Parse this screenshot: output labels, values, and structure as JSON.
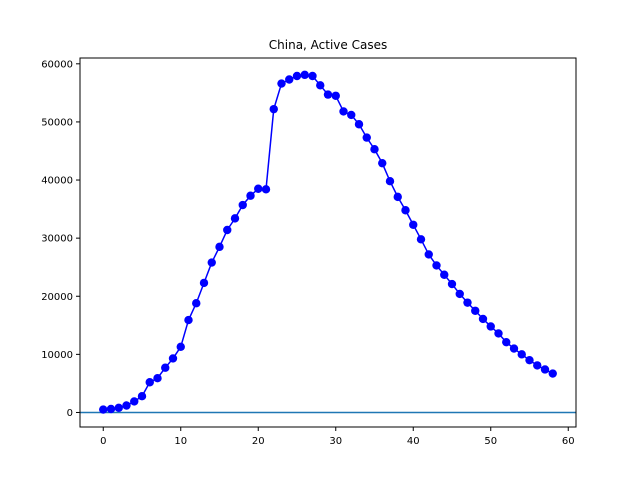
{
  "chart_data": {
    "type": "line",
    "title": "China, Active Cases",
    "xlabel": "",
    "ylabel": "",
    "xlim": [
      -3,
      61
    ],
    "ylim": [
      -2500,
      61000
    ],
    "xticks": [
      0,
      10,
      20,
      30,
      40,
      50,
      60
    ],
    "yticks": [
      0,
      10000,
      20000,
      30000,
      40000,
      50000,
      60000
    ],
    "grid": false,
    "series": [
      {
        "color": "#0000ff",
        "marker": "circle",
        "x": [
          0,
          1,
          2,
          3,
          4,
          5,
          6,
          7,
          8,
          9,
          10,
          11,
          12,
          13,
          14,
          15,
          16,
          17,
          18,
          19,
          20,
          21,
          22,
          23,
          24,
          25,
          26,
          27,
          28,
          29,
          30,
          31,
          32,
          33,
          34,
          35,
          36,
          37,
          38,
          39,
          40,
          41,
          42,
          43,
          44,
          45,
          46,
          47,
          48,
          49,
          50,
          51,
          52,
          53,
          54,
          55,
          56,
          57,
          58
        ],
        "y": [
          500,
          600,
          800,
          1200,
          1900,
          2800,
          5200,
          5900,
          7700,
          9300,
          11300,
          15900,
          18800,
          22300,
          25800,
          28500,
          31400,
          33400,
          35700,
          37300,
          38500,
          38400,
          52200,
          56600,
          57300,
          57900,
          58100,
          57900,
          56300,
          54700,
          54500,
          51800,
          51200,
          49600,
          47300,
          45300,
          42900,
          39800,
          37100,
          34800,
          32300,
          29800,
          27200,
          25300,
          23700,
          22100,
          20400,
          18900,
          17500,
          16100,
          14800,
          13600,
          12100,
          11000,
          10000,
          9000,
          8100,
          7400,
          6700
        ]
      }
    ],
    "hlines": [
      {
        "y": 0,
        "color": "#1f77b4"
      }
    ]
  }
}
